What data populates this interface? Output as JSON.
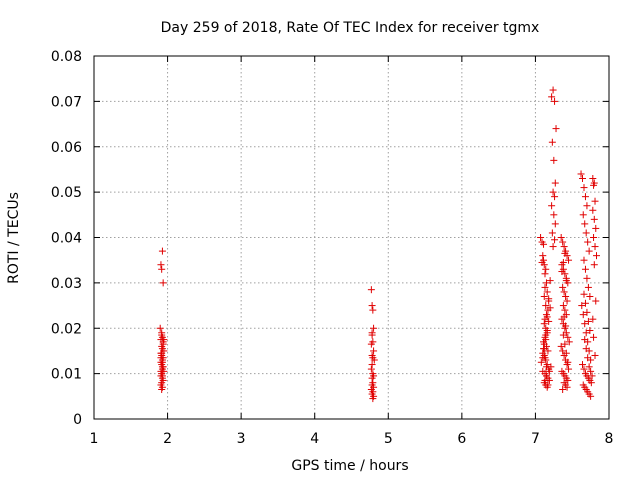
{
  "chart_data": {
    "type": "scatter",
    "title": "Day 259 of 2018, Rate Of TEC Index for receiver tgmx",
    "xlabel": "GPS time / hours",
    "ylabel": "ROTI / TECUs",
    "xlim": [
      1,
      8
    ],
    "ylim": [
      0,
      0.08
    ],
    "xticks": [
      "1",
      "2",
      "3",
      "4",
      "5",
      "6",
      "7",
      "8"
    ],
    "yticks": [
      "0",
      "0.01",
      "0.02",
      "0.03",
      "0.04",
      "0.05",
      "0.06",
      "0.07",
      "0.08"
    ],
    "grid": true,
    "marker": "+",
    "color": "#e00000",
    "series": [
      {
        "name": "ROTI",
        "x": [
          1.91,
          1.92,
          1.93,
          1.94,
          1.9,
          1.92,
          1.93,
          1.91,
          1.94,
          1.92,
          1.93,
          1.95,
          1.91,
          1.92,
          1.94,
          1.93,
          1.91,
          1.92,
          1.94,
          1.93,
          1.95,
          1.92,
          1.91,
          1.93,
          1.94,
          1.92,
          1.91,
          1.93,
          1.92,
          1.94,
          1.92,
          1.93,
          1.91,
          1.92,
          1.93,
          1.95,
          1.91,
          1.93,
          4.77,
          4.78,
          4.79,
          4.8,
          4.78,
          4.79,
          4.77,
          4.8,
          4.78,
          4.79,
          4.81,
          4.78,
          4.77,
          4.79,
          4.8,
          4.78,
          4.79,
          4.78,
          4.8,
          4.77,
          4.79,
          4.78,
          4.8,
          4.79,
          4.78,
          7.07,
          7.09,
          7.1,
          7.12,
          7.13,
          7.15,
          7.16,
          7.18,
          7.11,
          7.14,
          7.13,
          7.12,
          7.14,
          7.17,
          7.15,
          7.13,
          7.12,
          7.14,
          7.16,
          7.13,
          7.11,
          7.15,
          7.17,
          7.12,
          7.14,
          7.16,
          7.18,
          7.1,
          7.13,
          7.15,
          7.17,
          7.19,
          7.12,
          7.14,
          7.16,
          7.11,
          7.13,
          7.15,
          7.08,
          7.1,
          7.12,
          7.14,
          7.16,
          7.18,
          7.2,
          7.09,
          7.11,
          7.13,
          7.15,
          7.17,
          7.19,
          7.21,
          7.1,
          7.12,
          7.14,
          7.16,
          7.18,
          7.2,
          7.22,
          7.24,
          7.26,
          7.28,
          7.23,
          7.25,
          7.27,
          7.24,
          7.26,
          7.22,
          7.25,
          7.27,
          7.23,
          7.26,
          7.24,
          7.35,
          7.37,
          7.39,
          7.41,
          7.43,
          7.45,
          7.36,
          7.38,
          7.4,
          7.42,
          7.44,
          7.37,
          7.39,
          7.41,
          7.43,
          7.38,
          7.4,
          7.42,
          7.36,
          7.38,
          7.4,
          7.42,
          7.44,
          7.46,
          7.35,
          7.37,
          7.39,
          7.41,
          7.43,
          7.45,
          7.36,
          7.38,
          7.4,
          7.42,
          7.44,
          7.39,
          7.41,
          7.43,
          7.37,
          7.39,
          7.41,
          7.38,
          7.4,
          7.42,
          7.44,
          7.36,
          7.38,
          7.4,
          7.42,
          7.62,
          7.64,
          7.66,
          7.68,
          7.7,
          7.65,
          7.67,
          7.69,
          7.71,
          7.73,
          7.66,
          7.68,
          7.7,
          7.72,
          7.74,
          7.63,
          7.65,
          7.67,
          7.69,
          7.71,
          7.73,
          7.75,
          7.64,
          7.66,
          7.68,
          7.7,
          7.72,
          7.74,
          7.76,
          7.65,
          7.67,
          7.69,
          7.71,
          7.73,
          7.75,
          7.66,
          7.68,
          7.7,
          7.72,
          7.74,
          7.67,
          7.69,
          7.71,
          7.73,
          7.75,
          7.77,
          7.78,
          7.8,
          7.79,
          7.81,
          7.78,
          7.8,
          7.82,
          7.79,
          7.81,
          7.83,
          7.8,
          7.82,
          7.78,
          7.79,
          7.81
        ],
        "y": [
          0.034,
          0.033,
          0.037,
          0.03,
          0.02,
          0.019,
          0.018,
          0.0175,
          0.017,
          0.016,
          0.0155,
          0.015,
          0.0145,
          0.014,
          0.0135,
          0.013,
          0.0125,
          0.012,
          0.0115,
          0.011,
          0.0105,
          0.01,
          0.0095,
          0.009,
          0.0085,
          0.008,
          0.0075,
          0.007,
          0.0065,
          0.0165,
          0.0185,
          0.0125,
          0.0105,
          0.0145,
          0.0095,
          0.0175,
          0.0135,
          0.0115,
          0.0285,
          0.025,
          0.024,
          0.02,
          0.019,
          0.017,
          0.0165,
          0.015,
          0.014,
          0.0135,
          0.013,
          0.012,
          0.011,
          0.01,
          0.0095,
          0.009,
          0.008,
          0.0075,
          0.007,
          0.0065,
          0.006,
          0.0055,
          0.005,
          0.0045,
          0.0185,
          0.04,
          0.039,
          0.036,
          0.034,
          0.032,
          0.03,
          0.028,
          0.026,
          0.035,
          0.033,
          0.029,
          0.027,
          0.025,
          0.024,
          0.023,
          0.022,
          0.021,
          0.02,
          0.019,
          0.018,
          0.017,
          0.016,
          0.015,
          0.014,
          0.013,
          0.012,
          0.011,
          0.0105,
          0.01,
          0.0095,
          0.009,
          0.0085,
          0.008,
          0.0075,
          0.007,
          0.0155,
          0.0135,
          0.0115,
          0.0125,
          0.0145,
          0.0165,
          0.0185,
          0.0225,
          0.0265,
          0.0305,
          0.0345,
          0.0385,
          0.0085,
          0.0095,
          0.0075,
          0.0105,
          0.0115,
          0.0135,
          0.0155,
          0.0175,
          0.0195,
          0.0215,
          0.0245,
          0.071,
          0.0725,
          0.07,
          0.064,
          0.061,
          0.057,
          0.052,
          0.05,
          0.049,
          0.047,
          0.045,
          0.043,
          0.041,
          0.0395,
          0.038,
          0.04,
          0.039,
          0.038,
          0.037,
          0.036,
          0.035,
          0.034,
          0.033,
          0.032,
          0.031,
          0.03,
          0.029,
          0.028,
          0.027,
          0.026,
          0.025,
          0.024,
          0.023,
          0.022,
          0.021,
          0.02,
          0.019,
          0.018,
          0.017,
          0.016,
          0.015,
          0.014,
          0.013,
          0.012,
          0.011,
          0.0105,
          0.01,
          0.0095,
          0.009,
          0.0085,
          0.008,
          0.0075,
          0.007,
          0.0065,
          0.0225,
          0.0205,
          0.0185,
          0.0165,
          0.0145,
          0.0125,
          0.0325,
          0.0345,
          0.0365,
          0.0305,
          0.054,
          0.053,
          0.051,
          0.049,
          0.047,
          0.045,
          0.043,
          0.041,
          0.039,
          0.037,
          0.035,
          0.033,
          0.031,
          0.029,
          0.027,
          0.025,
          0.023,
          0.021,
          0.019,
          0.017,
          0.015,
          0.013,
          0.012,
          0.011,
          0.01,
          0.0095,
          0.009,
          0.0085,
          0.008,
          0.0075,
          0.007,
          0.0065,
          0.006,
          0.0055,
          0.005,
          0.0275,
          0.0255,
          0.0235,
          0.0215,
          0.0195,
          0.0175,
          0.0155,
          0.0135,
          0.0115,
          0.0105,
          0.0095,
          0.053,
          0.052,
          0.0515,
          0.048,
          0.046,
          0.044,
          0.042,
          0.04,
          0.038,
          0.036,
          0.034,
          0.026,
          0.022,
          0.018,
          0.014
        ]
      }
    ]
  }
}
